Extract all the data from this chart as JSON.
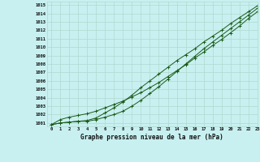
{
  "title": "Graphe pression niveau de la mer (hPa)",
  "bg_color": "#c8f0f0",
  "grid_color": "#b0d8d0",
  "line_color": "#1a5c1a",
  "xlim": [
    -0.5,
    23
  ],
  "ylim": [
    1000.6,
    1015.4
  ],
  "xticks": [
    0,
    1,
    2,
    3,
    4,
    5,
    6,
    7,
    8,
    9,
    10,
    11,
    12,
    13,
    14,
    15,
    16,
    17,
    18,
    19,
    20,
    21,
    22,
    23
  ],
  "yticks": [
    1001,
    1002,
    1003,
    1004,
    1005,
    1006,
    1007,
    1008,
    1009,
    1010,
    1011,
    1012,
    1013,
    1014,
    1015
  ],
  "series_straight": [
    1000.8,
    1001.4,
    1001.7,
    1001.9,
    1002.1,
    1002.4,
    1002.8,
    1003.2,
    1003.6,
    1004.1,
    1004.6,
    1005.2,
    1005.8,
    1006.5,
    1007.2,
    1007.9,
    1008.7,
    1009.4,
    1010.2,
    1010.9,
    1011.7,
    1012.5,
    1013.4,
    1014.2
  ],
  "series_upper": [
    1000.8,
    1001.0,
    1001.1,
    1001.2,
    1001.3,
    1001.6,
    1002.2,
    1002.8,
    1003.5,
    1004.3,
    1005.2,
    1006.0,
    1006.8,
    1007.6,
    1008.4,
    1009.1,
    1009.8,
    1010.6,
    1011.3,
    1012.0,
    1012.8,
    1013.5,
    1014.2,
    1014.9
  ],
  "series_lower": [
    1000.8,
    1001.0,
    1001.1,
    1001.2,
    1001.2,
    1001.4,
    1001.7,
    1002.0,
    1002.4,
    1003.0,
    1003.7,
    1004.5,
    1005.3,
    1006.2,
    1007.1,
    1008.0,
    1008.9,
    1009.8,
    1010.6,
    1011.4,
    1012.2,
    1013.0,
    1013.8,
    1014.6
  ]
}
